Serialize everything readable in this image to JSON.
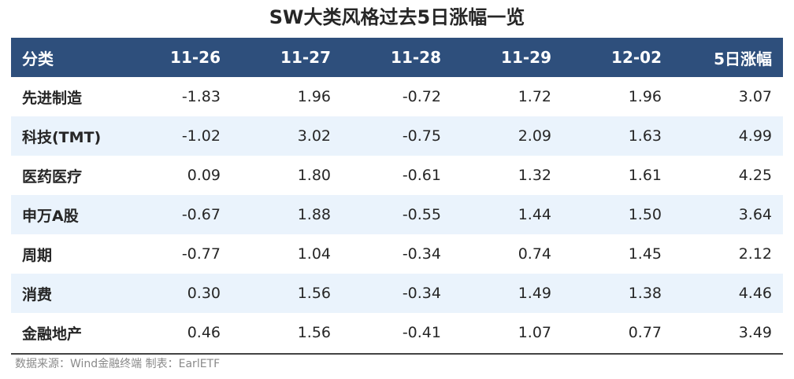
{
  "chart_data": {
    "type": "table",
    "title": "SW大类风格过去5日涨幅一览",
    "columns": [
      "分类",
      "11-26",
      "11-27",
      "11-28",
      "11-29",
      "12-02",
      "5日涨幅"
    ],
    "rows": [
      [
        "先进制造",
        "-1.83",
        "1.96",
        "-0.72",
        "1.72",
        "1.96",
        "3.07"
      ],
      [
        "科技(TMT)",
        "-1.02",
        "3.02",
        "-0.75",
        "2.09",
        "1.63",
        "4.99"
      ],
      [
        "医药医疗",
        "0.09",
        "1.80",
        "-0.61",
        "1.32",
        "1.61",
        "4.25"
      ],
      [
        "申万A股",
        "-0.67",
        "1.88",
        "-0.55",
        "1.44",
        "1.50",
        "3.64"
      ],
      [
        "周期",
        "-0.77",
        "1.04",
        "-0.34",
        "0.74",
        "1.45",
        "2.12"
      ],
      [
        "消费",
        "0.30",
        "1.56",
        "-0.34",
        "1.49",
        "1.38",
        "4.46"
      ],
      [
        "金融地产",
        "0.46",
        "1.56",
        "-0.41",
        "1.07",
        "0.77",
        "3.49"
      ]
    ],
    "header_color": "#2e4f7c",
    "stripe_color": "#eaf3fc"
  },
  "footer": "数据来源：Wind金融终端 制表：EarlETF"
}
